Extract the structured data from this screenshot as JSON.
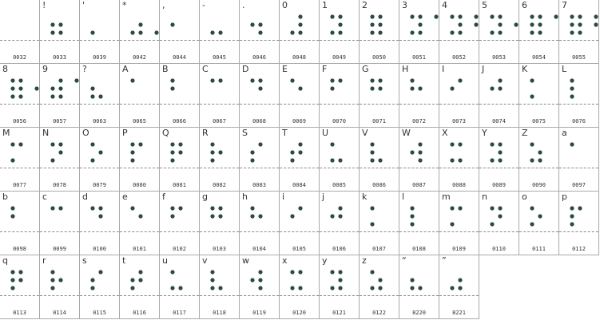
{
  "colors": {
    "dot": "#2c4a44",
    "border": "#a9a9a9",
    "baseline": "#8a8a8a",
    "text": "#333333"
  },
  "glyphs": [
    {
      "char": "",
      "code": "0032",
      "dots": []
    },
    {
      "char": "!",
      "code": "0033",
      "dots": [
        2,
        3,
        5,
        6
      ]
    },
    {
      "char": "'",
      "code": "0039",
      "dots": [
        3
      ]
    },
    {
      "char": "*",
      "code": "0042",
      "dots": [
        3,
        6,
        5,
        6
      ]
    },
    {
      "char": ",",
      "code": "0044",
      "dots": [
        2
      ]
    },
    {
      "char": "-",
      "code": "0045",
      "dots": [
        3,
        6
      ]
    },
    {
      "char": ".",
      "code": "0046",
      "dots": [
        2,
        5,
        6
      ]
    },
    {
      "char": "0",
      "code": "0048",
      "dots": [
        3,
        4,
        5,
        6
      ]
    },
    {
      "char": "1",
      "code": "0049",
      "dots": [
        3,
        4,
        5,
        6,
        1
      ]
    },
    {
      "char": "2",
      "code": "0050",
      "dots": [
        3,
        4,
        5,
        6,
        1,
        2
      ]
    },
    {
      "char": "3",
      "code": "0051",
      "dots": [
        3,
        4,
        5,
        6,
        1,
        4
      ]
    },
    {
      "char": "4",
      "code": "0052",
      "dots": [
        3,
        4,
        5,
        6,
        1,
        4,
        5
      ]
    },
    {
      "char": "5",
      "code": "0053",
      "dots": [
        3,
        4,
        5,
        6,
        1,
        5
      ]
    },
    {
      "char": "6",
      "code": "0054",
      "dots": [
        3,
        4,
        5,
        6,
        1,
        2,
        4
      ]
    },
    {
      "char": "7",
      "code": "0055",
      "dots": [
        3,
        4,
        5,
        6,
        1,
        2,
        4,
        5
      ]
    },
    {
      "char": "8",
      "code": "0056",
      "dots": [
        3,
        4,
        5,
        6,
        1,
        2,
        5
      ]
    },
    {
      "char": "9",
      "code": "0057",
      "dots": [
        3,
        4,
        5,
        6,
        2,
        4
      ]
    },
    {
      "char": "?",
      "code": "0063",
      "dots": [
        2,
        3,
        6
      ]
    },
    {
      "char": "A",
      "code": "0065",
      "dots": [
        1
      ]
    },
    {
      "char": "B",
      "code": "0066",
      "dots": [
        1,
        2
      ]
    },
    {
      "char": "C",
      "code": "0067",
      "dots": [
        1,
        4
      ]
    },
    {
      "char": "D",
      "code": "0068",
      "dots": [
        1,
        4,
        5
      ]
    },
    {
      "char": "E",
      "code": "0069",
      "dots": [
        1,
        5
      ]
    },
    {
      "char": "F",
      "code": "0070",
      "dots": [
        1,
        2,
        4
      ]
    },
    {
      "char": "G",
      "code": "0071",
      "dots": [
        1,
        2,
        4,
        5
      ]
    },
    {
      "char": "H",
      "code": "0072",
      "dots": [
        1,
        2,
        5
      ]
    },
    {
      "char": "I",
      "code": "0073",
      "dots": [
        2,
        4
      ]
    },
    {
      "char": "J",
      "code": "0074",
      "dots": [
        2,
        4,
        5
      ]
    },
    {
      "char": "K",
      "code": "0075",
      "dots": [
        1,
        3
      ]
    },
    {
      "char": "L",
      "code": "0076",
      "dots": [
        1,
        2,
        3
      ]
    },
    {
      "char": "M",
      "code": "0077",
      "dots": [
        1,
        3,
        4
      ]
    },
    {
      "char": "N",
      "code": "0078",
      "dots": [
        1,
        3,
        4,
        5
      ]
    },
    {
      "char": "O",
      "code": "0079",
      "dots": [
        1,
        3,
        5
      ]
    },
    {
      "char": "P",
      "code": "0080",
      "dots": [
        1,
        2,
        3,
        4
      ]
    },
    {
      "char": "Q",
      "code": "0081",
      "dots": [
        1,
        2,
        3,
        4,
        5
      ]
    },
    {
      "char": "R",
      "code": "0082",
      "dots": [
        1,
        2,
        3,
        5
      ]
    },
    {
      "char": "S",
      "code": "0083",
      "dots": [
        2,
        3,
        4
      ]
    },
    {
      "char": "T",
      "code": "0084",
      "dots": [
        2,
        3,
        4,
        5
      ]
    },
    {
      "char": "U",
      "code": "0085",
      "dots": [
        1,
        3,
        6
      ]
    },
    {
      "char": "V",
      "code": "0086",
      "dots": [
        1,
        2,
        3,
        6
      ]
    },
    {
      "char": "W",
      "code": "0087",
      "dots": [
        2,
        4,
        5,
        6
      ]
    },
    {
      "char": "X",
      "code": "0088",
      "dots": [
        1,
        3,
        4,
        6
      ]
    },
    {
      "char": "Y",
      "code": "0089",
      "dots": [
        1,
        3,
        4,
        5,
        6
      ]
    },
    {
      "char": "Z",
      "code": "0090",
      "dots": [
        1,
        3,
        5,
        6
      ]
    },
    {
      "char": "a",
      "code": "0097",
      "dots": [
        1
      ]
    },
    {
      "char": "b",
      "code": "0098",
      "dots": [
        1,
        2
      ]
    },
    {
      "char": "c",
      "code": "0099",
      "dots": [
        1,
        4
      ]
    },
    {
      "char": "d",
      "code": "0100",
      "dots": [
        1,
        4,
        5
      ]
    },
    {
      "char": "e",
      "code": "0101",
      "dots": [
        1,
        5
      ]
    },
    {
      "char": "f",
      "code": "0102",
      "dots": [
        1,
        2,
        4
      ]
    },
    {
      "char": "g",
      "code": "0103",
      "dots": [
        1,
        2,
        4,
        5
      ]
    },
    {
      "char": "h",
      "code": "0104",
      "dots": [
        1,
        2,
        5
      ]
    },
    {
      "char": "i",
      "code": "0105",
      "dots": [
        2,
        4
      ]
    },
    {
      "char": "j",
      "code": "0106",
      "dots": [
        2,
        4,
        5
      ]
    },
    {
      "char": "k",
      "code": "0107",
      "dots": [
        1,
        3
      ]
    },
    {
      "char": "l",
      "code": "0108",
      "dots": [
        1,
        2,
        3
      ]
    },
    {
      "char": "m",
      "code": "0109",
      "dots": [
        1,
        3,
        4
      ]
    },
    {
      "char": "n",
      "code": "0110",
      "dots": [
        1,
        3,
        4,
        5
      ]
    },
    {
      "char": "o",
      "code": "0111",
      "dots": [
        1,
        3,
        5
      ]
    },
    {
      "char": "p",
      "code": "0112",
      "dots": [
        1,
        2,
        3,
        4
      ]
    },
    {
      "char": "q",
      "code": "0113",
      "dots": [
        1,
        2,
        3,
        4,
        5
      ]
    },
    {
      "char": "r",
      "code": "0114",
      "dots": [
        1,
        2,
        3,
        5
      ]
    },
    {
      "char": "s",
      "code": "0115",
      "dots": [
        2,
        3,
        4
      ]
    },
    {
      "char": "t",
      "code": "0116",
      "dots": [
        2,
        3,
        4,
        5
      ]
    },
    {
      "char": "u",
      "code": "0117",
      "dots": [
        1,
        3,
        6
      ]
    },
    {
      "char": "v",
      "code": "0118",
      "dots": [
        1,
        2,
        3,
        6
      ]
    },
    {
      "char": "w",
      "code": "0119",
      "dots": [
        2,
        4,
        5,
        6
      ]
    },
    {
      "char": "x",
      "code": "0120",
      "dots": [
        1,
        3,
        4,
        6
      ]
    },
    {
      "char": "y",
      "code": "0121",
      "dots": [
        1,
        3,
        4,
        5,
        6
      ]
    },
    {
      "char": "z",
      "code": "0122",
      "dots": [
        1,
        3,
        5,
        6
      ]
    },
    {
      "char": "“",
      "code": "8220",
      "dots": [
        2,
        3,
        6
      ]
    },
    {
      "char": "”",
      "code": "8221",
      "dots": [
        3,
        5,
        6
      ]
    }
  ]
}
